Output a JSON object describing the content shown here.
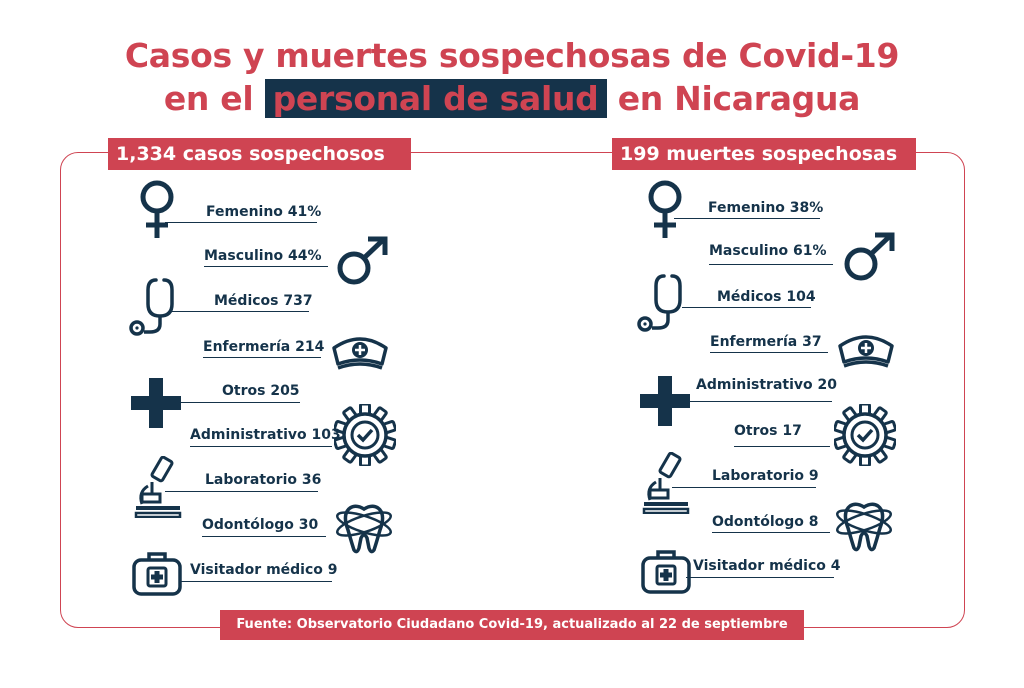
{
  "title_line1": "Casos y muertes sospechosas de Covid-19",
  "title_line2_pre": "en el",
  "title_line2_highlight": "personal de salud",
  "title_line2_post": "en Nicaragua",
  "left_header": "1,334 casos sospechosos",
  "right_header": "199 muertes sospechosas",
  "source": "Fuente: Observatorio Ciudadano Covid-19, actualizado al 22 de septiembre",
  "colors": {
    "accent": "#cf4452",
    "navy": "#15334a"
  },
  "chart_data": [
    {
      "type": "table",
      "title": "1,334 casos sospechosos",
      "total": 1334,
      "rows": [
        {
          "label": "Femenino 41%",
          "category": "Femenino",
          "value": 41,
          "unit": "%",
          "icon": "female-icon"
        },
        {
          "label": "Masculino 44%",
          "category": "Masculino",
          "value": 44,
          "unit": "%",
          "icon": "male-icon"
        },
        {
          "label": "Médicos 737",
          "category": "Médicos",
          "value": 737,
          "icon": "stethoscope-icon"
        },
        {
          "label": "Enfermería 214",
          "category": "Enfermería",
          "value": 214,
          "icon": "nurse-cap-icon"
        },
        {
          "label": "Otros 205",
          "category": "Otros",
          "value": 205,
          "icon": "plus-icon"
        },
        {
          "label": "Administrativo 103",
          "category": "Administrativo",
          "value": 103,
          "icon": "gear-check-icon"
        },
        {
          "label": "Laboratorio 36",
          "category": "Laboratorio",
          "value": 36,
          "icon": "microscope-icon"
        },
        {
          "label": "Odontólogo 30",
          "category": "Odontólogo",
          "value": 30,
          "icon": "tooth-icon"
        },
        {
          "label": "Visitador médico 9",
          "category": "Visitador médico",
          "value": 9,
          "icon": "medical-case-icon"
        }
      ]
    },
    {
      "type": "table",
      "title": "199 muertes sospechosas",
      "total": 199,
      "rows": [
        {
          "label": "Femenino 38%",
          "category": "Femenino",
          "value": 38,
          "unit": "%",
          "icon": "female-icon"
        },
        {
          "label": "Masculino 61%",
          "category": "Masculino",
          "value": 61,
          "unit": "%",
          "icon": "male-icon"
        },
        {
          "label": "Médicos 104",
          "category": "Médicos",
          "value": 104,
          "icon": "stethoscope-icon"
        },
        {
          "label": "Enfermería 37",
          "category": "Enfermería",
          "value": 37,
          "icon": "nurse-cap-icon"
        },
        {
          "label": "Administrativo 20",
          "category": "Administrativo",
          "value": 20,
          "icon": "plus-icon"
        },
        {
          "label": "Otros 17",
          "category": "Otros",
          "value": 17,
          "icon": "gear-check-icon"
        },
        {
          "label": "Laboratorio 9",
          "category": "Laboratorio",
          "value": 9,
          "icon": "microscope-icon"
        },
        {
          "label": "Odontólogo 8",
          "category": "Odontólogo",
          "value": 8,
          "icon": "tooth-icon"
        },
        {
          "label": "Visitador médico 4",
          "category": "Visitador médico",
          "value": 4,
          "icon": "medical-case-icon"
        }
      ]
    }
  ]
}
